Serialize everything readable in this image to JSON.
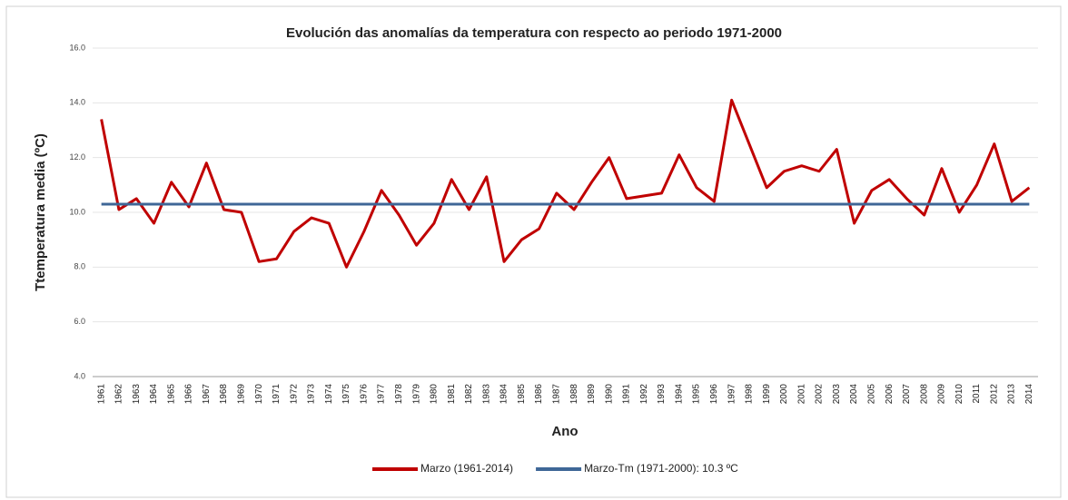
{
  "chart_data": {
    "type": "line",
    "title": "Evolución das anomalías da temperatura con respecto ao periodo 1971-2000",
    "x_label": "Ano",
    "y_label": "Ttemperatura media (ºC)",
    "categories": [
      "1961",
      "1962",
      "1963",
      "1964",
      "1965",
      "1966",
      "1967",
      "1968",
      "1969",
      "1970",
      "1971",
      "1972",
      "1973",
      "1974",
      "1975",
      "1976",
      "1977",
      "1978",
      "1979",
      "1980",
      "1981",
      "1982",
      "1983",
      "1984",
      "1985",
      "1986",
      "1987",
      "1988",
      "1989",
      "1990",
      "1991",
      "1992",
      "1993",
      "1994",
      "1995",
      "1996",
      "1997",
      "1998",
      "1999",
      "2000",
      "2001",
      "2002",
      "2003",
      "2004",
      "2005",
      "2006",
      "2007",
      "2008",
      "2009",
      "2010",
      "2011",
      "2012",
      "2013",
      "2014"
    ],
    "series": [
      {
        "name": "Marzo (1961-2014)",
        "color": "#c00000",
        "values": [
          13.4,
          10.1,
          10.5,
          9.6,
          11.1,
          10.2,
          11.8,
          10.1,
          10.0,
          8.2,
          8.3,
          9.3,
          9.8,
          9.6,
          8.0,
          9.3,
          10.8,
          9.9,
          8.8,
          9.6,
          11.2,
          10.1,
          11.3,
          8.2,
          9.0,
          9.4,
          10.7,
          10.1,
          11.1,
          12.0,
          10.5,
          10.6,
          10.7,
          12.1,
          10.9,
          10.4,
          14.1,
          12.5,
          10.9,
          11.5,
          11.7,
          11.5,
          12.3,
          9.6,
          10.8,
          11.2,
          10.5,
          9.9,
          11.6,
          10.0,
          11.0,
          12.5,
          10.4,
          10.9
        ]
      },
      {
        "name": "Marzo-Tm (1971-2000): 10.3 ºC",
        "color": "#3f6797",
        "values": [
          10.3,
          10.3,
          10.3,
          10.3,
          10.3,
          10.3,
          10.3,
          10.3,
          10.3,
          10.3,
          10.3,
          10.3,
          10.3,
          10.3,
          10.3,
          10.3,
          10.3,
          10.3,
          10.3,
          10.3,
          10.3,
          10.3,
          10.3,
          10.3,
          10.3,
          10.3,
          10.3,
          10.3,
          10.3,
          10.3,
          10.3,
          10.3,
          10.3,
          10.3,
          10.3,
          10.3,
          10.3,
          10.3,
          10.3,
          10.3,
          10.3,
          10.3,
          10.3,
          10.3,
          10.3,
          10.3,
          10.3,
          10.3,
          10.3,
          10.3,
          10.3,
          10.3,
          10.3,
          10.3
        ]
      }
    ],
    "ylim": [
      4,
      16
    ],
    "yticks": [
      {
        "value": 4,
        "label": "4.0"
      },
      {
        "value": 6,
        "label": "6.0"
      },
      {
        "value": 8,
        "label": "8.0"
      },
      {
        "value": 10,
        "label": "10.0"
      },
      {
        "value": 12,
        "label": "12.0"
      },
      {
        "value": 14,
        "label": "14.0"
      },
      {
        "value": 16,
        "label": "16.0"
      }
    ],
    "grid": true,
    "legend": "bottom"
  }
}
